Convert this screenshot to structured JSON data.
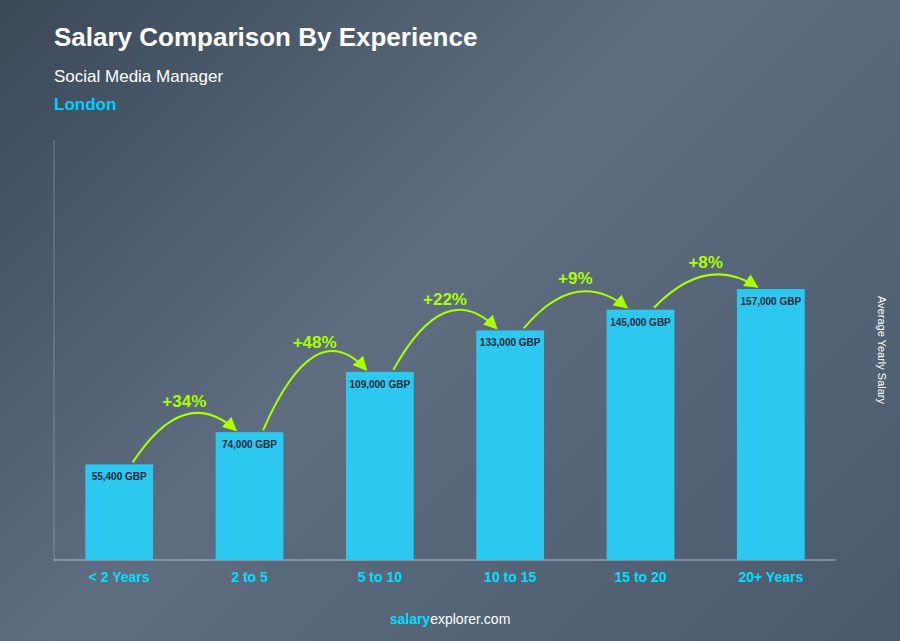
{
  "chart_data": {
    "type": "bar",
    "title": "Salary Comparison By Experience",
    "subtitle": "Social Media Manager",
    "annotations": [
      {
        "text": "London",
        "color": "#00CFFF"
      }
    ],
    "categories": [
      "< 2 Years",
      "2 to 5",
      "5 to 10",
      "10 to 15",
      "15 to 20",
      "20+ Years"
    ],
    "values": [
      55400,
      74000,
      109000,
      133000,
      145000,
      157000
    ],
    "value_labels": [
      "55,400 GBP",
      "74,000 GBP",
      "109,000 GBP",
      "133,000 GBP",
      "145,000 GBP",
      "157,000 GBP"
    ],
    "data_labels": true,
    "color": "#2DC8F0",
    "tick_color": "#00DFFF",
    "change_labels": [
      "+34%",
      "+48%",
      "+22%",
      "+9%",
      "+8%"
    ],
    "change_color": "#AAFF00",
    "ylabel": "Average Yearly Salary",
    "watermark": [
      {
        "text": "salary",
        "color": "#00DFFF"
      },
      {
        "text": "explorer.com",
        "color": "#FFFFFF"
      }
    ],
    "ylim": [
      0,
      243350
    ],
    "tick_labels": "x",
    "grid": false
  }
}
